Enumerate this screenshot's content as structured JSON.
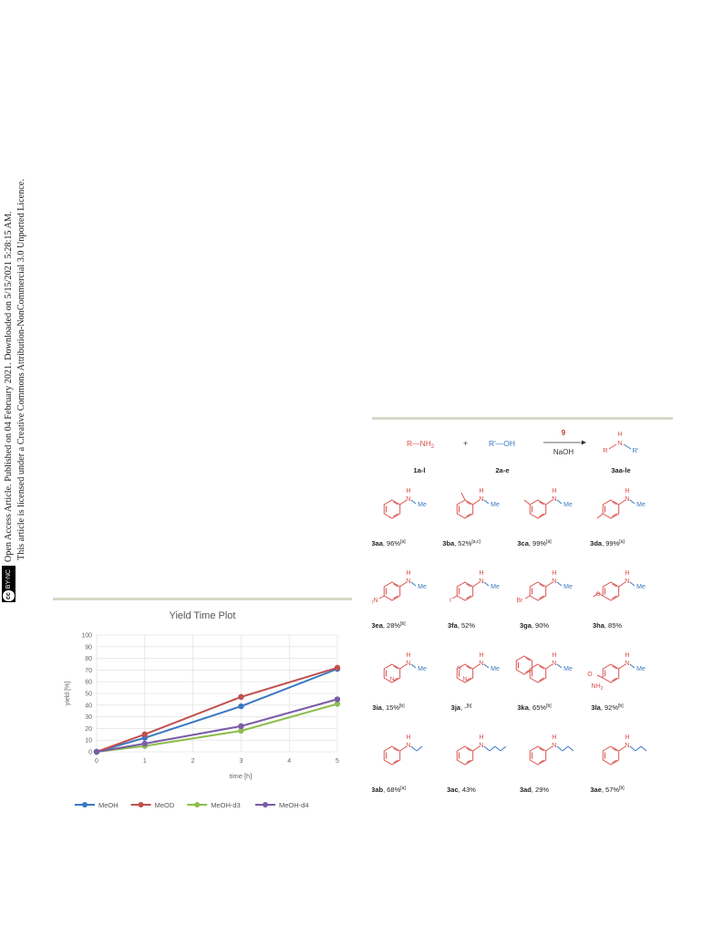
{
  "sidebar": {
    "license_badge": "BY-NC",
    "line1": "Open Access Article. Published on 04 February 2021. Downloaded on 5/15/2021 5:28:15 AM.",
    "line2": "This article is licensed under a Creative Commons Attribution-NonCommercial 3.0 Unported Licence."
  },
  "chart_data": {
    "type": "line",
    "title": "Yield Time Plot",
    "xlabel": "time [h]",
    "ylabel": "yield [%]",
    "x": [
      0,
      1,
      3,
      5
    ],
    "xlim": [
      0,
      5
    ],
    "ylim": [
      0,
      100
    ],
    "xticks": [
      "0",
      "1",
      "2",
      "3",
      "4",
      "5"
    ],
    "yticks": [
      "0",
      "10",
      "20",
      "30",
      "40",
      "50",
      "60",
      "70",
      "80",
      "90",
      "100"
    ],
    "grid": true,
    "legend_position": "bottom",
    "series": [
      {
        "name": "MeOH",
        "color": "#3a78c2",
        "values": [
          0,
          12,
          39,
          71
        ]
      },
      {
        "name": "MeOD",
        "color": "#c0504d",
        "values": [
          0,
          15,
          47,
          72
        ]
      },
      {
        "name": "MeOH-d3",
        "color": "#8dbd4f",
        "values": [
          0,
          5,
          18,
          41
        ]
      },
      {
        "name": "MeOH-d4",
        "color": "#7a5ca8",
        "values": [
          0,
          7,
          22,
          45
        ]
      }
    ]
  },
  "scheme": {
    "reagent_amine": "R—NH",
    "reagent_amine_sub": "2",
    "plus": "+",
    "reagent_alcohol": "R'—OH",
    "catalyst": "9",
    "base": "NaOH",
    "product_R": "R",
    "product_N": "N",
    "product_H": "H",
    "product_Rp": "R'",
    "label_amine": "1a-l",
    "label_alcohol": "2a-e",
    "label_product": "3aa-le",
    "me": "Me",
    "o2n": "O",
    "o2n_sub": "2",
    "o2n_n": "N",
    "iodo": "I",
    "bromo": "Br",
    "amide_o": "O",
    "amide_nh2": "NH",
    "amide_nh2_sub": "2",
    "pyr_n": "N",
    "products": [
      {
        "id": "3aa",
        "yield": ", 96%",
        "note": "[a]"
      },
      {
        "id": "3ba",
        "yield": ", 52%",
        "note": "[a,c]"
      },
      {
        "id": "3ca",
        "yield": ", 99%",
        "note": "[a]"
      },
      {
        "id": "3da",
        "yield": ", 99%",
        "note": "[a]"
      },
      {
        "id": "3ea",
        "yield": ", 28%",
        "note": "[b]"
      },
      {
        "id": "3fa",
        "yield": ", 52%",
        "note": ""
      },
      {
        "id": "3ga",
        "yield": ", 90%",
        "note": ""
      },
      {
        "id": "3ha",
        "yield": ", 85%",
        "note": ""
      },
      {
        "id": "3ia",
        "yield": ", 15%",
        "note": "[b]"
      },
      {
        "id": "3ja",
        "yield": ", -",
        "note": "[b]"
      },
      {
        "id": "3ka",
        "yield": ", 65%",
        "note": "[b]"
      },
      {
        "id": "3la",
        "yield": ", 92%",
        "note": "[b]"
      },
      {
        "id": "3ab",
        "yield": ", 68%",
        "note": "[a]"
      },
      {
        "id": "3ac",
        "yield": ", 43%",
        "note": ""
      },
      {
        "id": "3ad",
        "yield": ", 29%",
        "note": ""
      },
      {
        "id": "3ae",
        "yield": ", 57%",
        "note": "[b]"
      }
    ]
  }
}
